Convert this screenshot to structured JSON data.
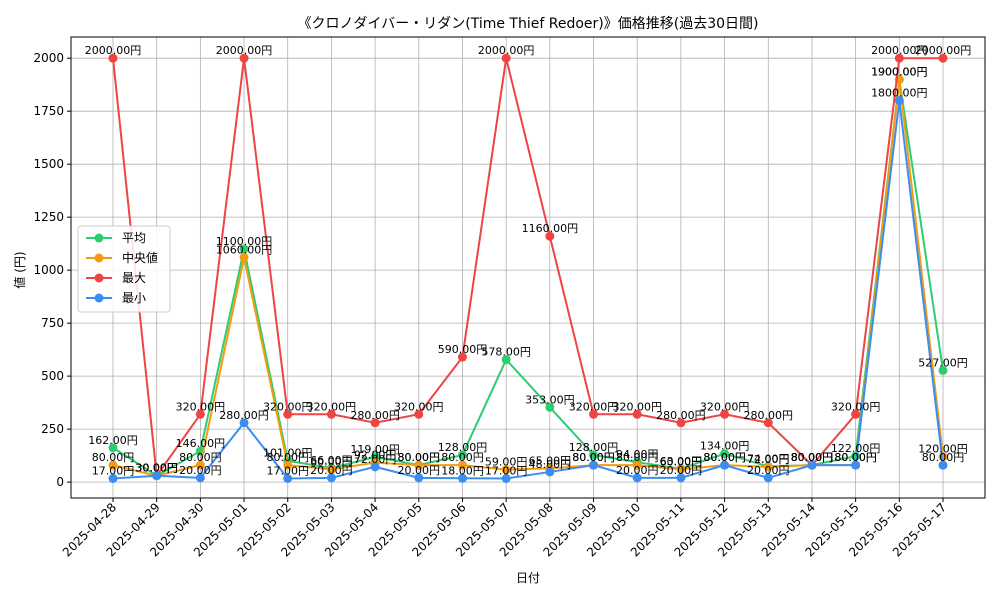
{
  "chart_data": {
    "type": "line",
    "title": "《クロノダイバー・リダン(Time Thief Redoer)》価格推移(過去30日間)",
    "xlabel": "日付",
    "ylabel": "値 (円)",
    "ylim": [
      -75,
      2100
    ],
    "yticks": [
      0,
      250,
      500,
      750,
      1000,
      1250,
      1500,
      1750,
      2000
    ],
    "grid": true,
    "legend_position": "center-left",
    "label_suffix": "円",
    "categories": [
      "2025-04-28",
      "2025-04-29",
      "2025-04-30",
      "2025-05-01",
      "2025-05-02",
      "2025-05-03",
      "2025-05-04",
      "2025-05-05",
      "2025-05-06",
      "2025-05-07",
      "2025-05-08",
      "2025-05-09",
      "2025-05-10",
      "2025-05-11",
      "2025-05-12",
      "2025-05-13",
      "2025-05-14",
      "2025-05-15",
      "2025-05-16",
      "2025-05-17"
    ],
    "series": [
      {
        "name": "平均",
        "color": "#2ecc71",
        "values": [
          162,
          30,
          146,
          1100,
          101,
          66,
          119,
          80,
          128,
          578,
          353,
          128,
          94,
          63,
          134,
          74,
          80,
          122,
          1900,
          527
        ]
      },
      {
        "name": "中央値",
        "color": "#f39c12",
        "values": [
          80,
          30,
          80,
          1060,
          80,
          60,
          92,
          80,
          80,
          59,
          65,
          80,
          80,
          60,
          80,
          72,
          80,
          80,
          1900,
          120
        ]
      },
      {
        "name": "最大",
        "color": "#ef4444",
        "values": [
          2000,
          30,
          320,
          2000,
          320,
          320,
          280,
          320,
          590,
          2000,
          1160,
          320,
          320,
          280,
          320,
          280,
          80,
          320,
          2000,
          2000
        ]
      },
      {
        "name": "最小",
        "color": "#3b8ef0",
        "values": [
          17,
          30,
          20,
          280,
          17,
          20,
          72,
          20,
          18,
          17,
          48,
          80,
          20,
          20,
          80,
          20,
          80,
          80,
          1800,
          80
        ]
      }
    ]
  }
}
